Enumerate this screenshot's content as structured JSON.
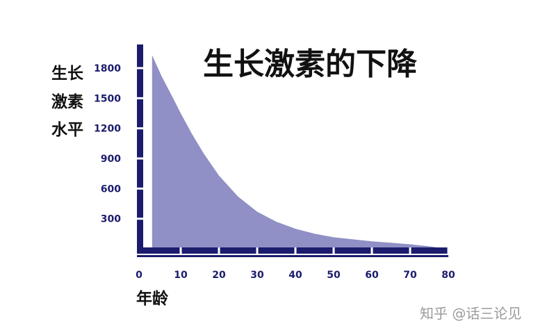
{
  "chart_data": {
    "type": "area",
    "title": "生长激素的下降",
    "ylabel_lines": [
      "生长",
      "激素",
      "水平"
    ],
    "xlabel": "年龄",
    "x_ticks": [
      0,
      10,
      20,
      30,
      40,
      50,
      60,
      70,
      80
    ],
    "y_ticks": [
      300,
      600,
      900,
      1200,
      1500,
      1800
    ],
    "xlim": [
      0,
      80
    ],
    "ylim": [
      0,
      1900
    ],
    "grid": false,
    "legend": "none",
    "fill_color": "#9090c6",
    "axis_color": "#1c1c6e",
    "series": [
      {
        "x": [
          2.5,
          5,
          8,
          10,
          13,
          16,
          20,
          25,
          30,
          35,
          40,
          45,
          50,
          55,
          60,
          65,
          70,
          75,
          79.5
        ],
        "values": [
          1930,
          1720,
          1500,
          1350,
          1140,
          950,
          730,
          520,
          370,
          270,
          200,
          150,
          115,
          95,
          75,
          60,
          45,
          25,
          0
        ]
      }
    ]
  },
  "watermark": "知乎 @话三论见"
}
